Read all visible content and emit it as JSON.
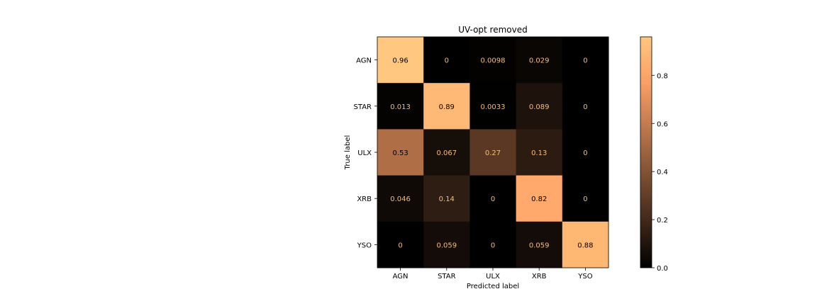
{
  "chart_data": {
    "type": "heatmap",
    "title": "UV-opt removed",
    "xlabel": "Predicted label",
    "ylabel": "True label",
    "x_categories": [
      "AGN",
      "STAR",
      "ULX",
      "XRB",
      "YSO"
    ],
    "y_categories": [
      "AGN",
      "STAR",
      "ULX",
      "XRB",
      "YSO"
    ],
    "values": [
      [
        0.96,
        0,
        0.0098,
        0.029,
        0
      ],
      [
        0.013,
        0.89,
        0.0033,
        0.089,
        0
      ],
      [
        0.53,
        0.067,
        0.27,
        0.13,
        0
      ],
      [
        0.046,
        0.14,
        0,
        0.82,
        0
      ],
      [
        0,
        0.059,
        0,
        0.059,
        0.88
      ]
    ],
    "cell_labels": [
      [
        "0.96",
        "0",
        "0.0098",
        "0.029",
        "0"
      ],
      [
        "0.013",
        "0.89",
        "0.0033",
        "0.089",
        "0"
      ],
      [
        "0.53",
        "0.067",
        "0.27",
        "0.13",
        "0"
      ],
      [
        "0.046",
        "0.14",
        "0",
        "0.82",
        "0"
      ],
      [
        "0",
        "0.059",
        "0",
        "0.059",
        "0.88"
      ]
    ],
    "colormap": "copper",
    "colorbar": {
      "range": [
        0.0,
        0.96
      ],
      "ticks": [
        0.0,
        0.2,
        0.4,
        0.6,
        0.8
      ],
      "tick_labels": [
        "0.0",
        "0.2",
        "0.4",
        "0.6",
        "0.8"
      ]
    }
  }
}
